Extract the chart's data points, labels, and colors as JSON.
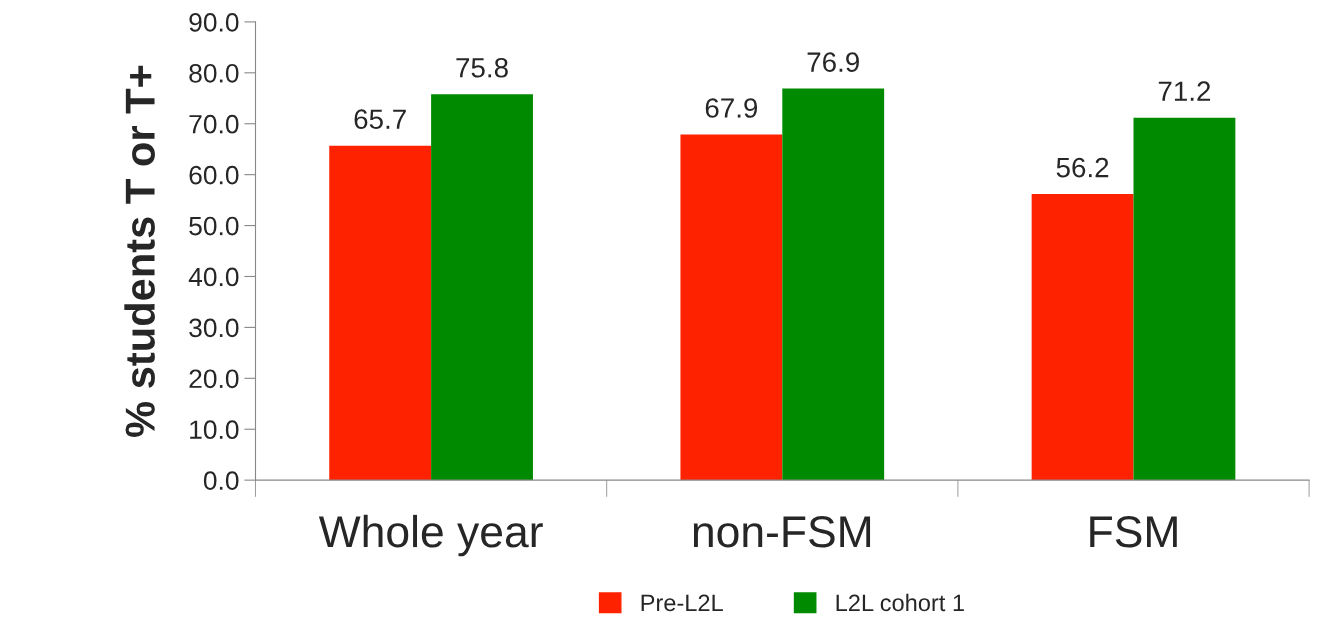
{
  "chart_data": {
    "type": "bar",
    "ylabel": "% students T or T+",
    "categories": [
      "Whole year",
      "non-FSM",
      "FSM"
    ],
    "series": [
      {
        "name": "Pre-L2L",
        "color": "#ff2200",
        "values": [
          65.7,
          67.9,
          56.2
        ]
      },
      {
        "name": "L2L cohort 1",
        "color": "#008a00",
        "values": [
          75.8,
          76.9,
          71.2
        ]
      }
    ],
    "ylim": [
      0,
      90
    ],
    "yticks": [
      {
        "value": 0,
        "label": "0.0"
      },
      {
        "value": 10,
        "label": "10.0"
      },
      {
        "value": 20,
        "label": "20.0"
      },
      {
        "value": 30,
        "label": "30.0"
      },
      {
        "value": 40,
        "label": "40.0"
      },
      {
        "value": 50,
        "label": "50.0"
      },
      {
        "value": 60,
        "label": "60.0"
      },
      {
        "value": 70,
        "label": "70.0"
      },
      {
        "value": 80,
        "label": "80.0"
      },
      {
        "value": 90,
        "label": "90.0"
      }
    ],
    "data_labels": true,
    "grid": false,
    "legend": "bottom"
  }
}
